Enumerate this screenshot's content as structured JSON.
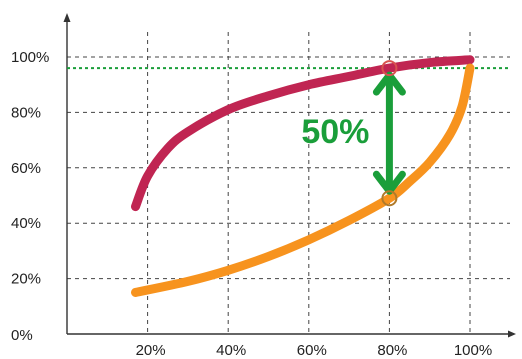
{
  "chart_data": {
    "type": "line",
    "title": "",
    "xlabel": "",
    "ylabel": "",
    "x_ticks": [
      "20%",
      "40%",
      "60%",
      "80%",
      "100%"
    ],
    "x_tick_values": [
      20,
      40,
      60,
      80,
      100
    ],
    "y_ticks": [
      "0%",
      "20%",
      "40%",
      "60%",
      "80%",
      "100%"
    ],
    "y_tick_values": [
      0,
      20,
      40,
      60,
      80,
      100
    ],
    "xlim": [
      0,
      107
    ],
    "ylim": [
      0,
      100
    ],
    "grid": true,
    "series": [
      {
        "color": "#c02552",
        "x": [
          17,
          20,
          25,
          30,
          40,
          50,
          60,
          70,
          80,
          90,
          100
        ],
        "values": [
          46,
          57,
          67,
          73,
          81,
          86,
          90,
          93,
          96,
          98,
          99
        ]
      },
      {
        "color": "#f7931e",
        "x": [
          17,
          30,
          40,
          50,
          60,
          70,
          80,
          85,
          90,
          95,
          98,
          100
        ],
        "values": [
          15,
          19,
          23,
          28,
          34,
          41,
          49,
          55,
          62,
          72,
          82,
          96
        ]
      }
    ],
    "reference_line": {
      "y": 96,
      "color": "#1a9e3a"
    },
    "annotation": {
      "text": "50%",
      "x": 80,
      "y_top": 96,
      "y_bottom": 49,
      "color": "#1a9e3a",
      "circle_color": "#d9534f"
    }
  }
}
